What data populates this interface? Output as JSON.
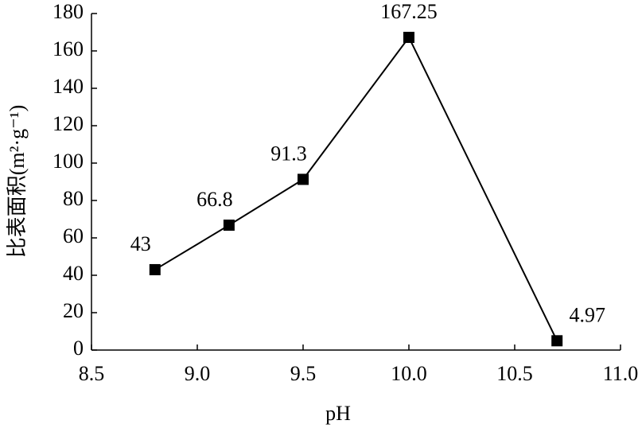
{
  "chart_data": {
    "type": "line",
    "x_label": "pH",
    "y_label": "比表面积(m²·g⁻¹)",
    "x": [
      8.8,
      9.15,
      9.5,
      10.0,
      10.7
    ],
    "series": [
      {
        "name": "比表面积",
        "color": "#000000",
        "values": [
          43,
          66.8,
          91.3,
          167.25,
          4.97
        ]
      }
    ],
    "xlim": [
      8.5,
      11.0
    ],
    "xticks": [
      8.5,
      {
        "value": 9,
        "label": "9.0"
      },
      9.5,
      {
        "value": 10,
        "label": "10.0"
      },
      10.5,
      {
        "value": 11,
        "label": "11.0"
      }
    ],
    "ylim": [
      0,
      180
    ],
    "yticks": [
      0,
      20,
      40,
      60,
      80,
      100,
      120,
      140,
      160,
      180
    ],
    "grid": false
  }
}
